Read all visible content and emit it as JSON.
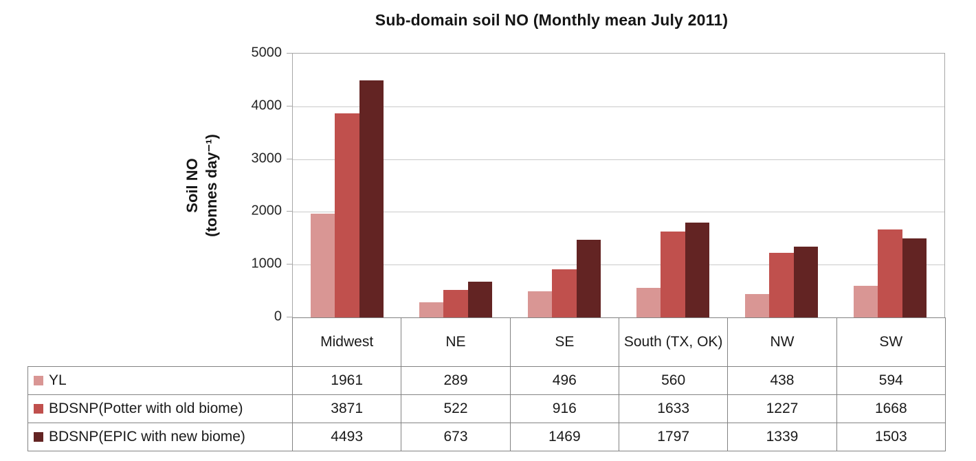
{
  "chart_data": {
    "type": "bar",
    "title": "Sub-domain soil NO (Monthly mean  July 2011)",
    "ylabel_line1": "Soil NO",
    "ylabel_line2": "(tonnes  day⁻¹)",
    "categories": [
      "Midwest",
      "NE",
      "SE",
      "South (TX, OK)",
      "NW",
      "SW"
    ],
    "series": [
      {
        "name": "YL",
        "color": "#D99694",
        "values": [
          1961,
          289,
          496,
          560,
          438,
          594
        ]
      },
      {
        "name": "BDSNP(Potter with old biome)",
        "color": "#C0504D",
        "values": [
          3871,
          522,
          916,
          1633,
          1227,
          1668
        ]
      },
      {
        "name": "BDSNP(EPIC with new biome)",
        "color": "#632423",
        "values": [
          4493,
          673,
          1469,
          1797,
          1339,
          1503
        ]
      }
    ],
    "ylim": [
      0,
      5000
    ],
    "yticks": [
      0,
      1000,
      2000,
      3000,
      4000,
      5000
    ],
    "grid": true,
    "legend_position": "table-left"
  },
  "colors": {
    "plot_border": "#a6a6a6",
    "gridline": "#c9c9c9",
    "table_border": "#828282",
    "title_text": "#151515",
    "tick_text": "#262626",
    "table_text": "#1a1a1a"
  }
}
